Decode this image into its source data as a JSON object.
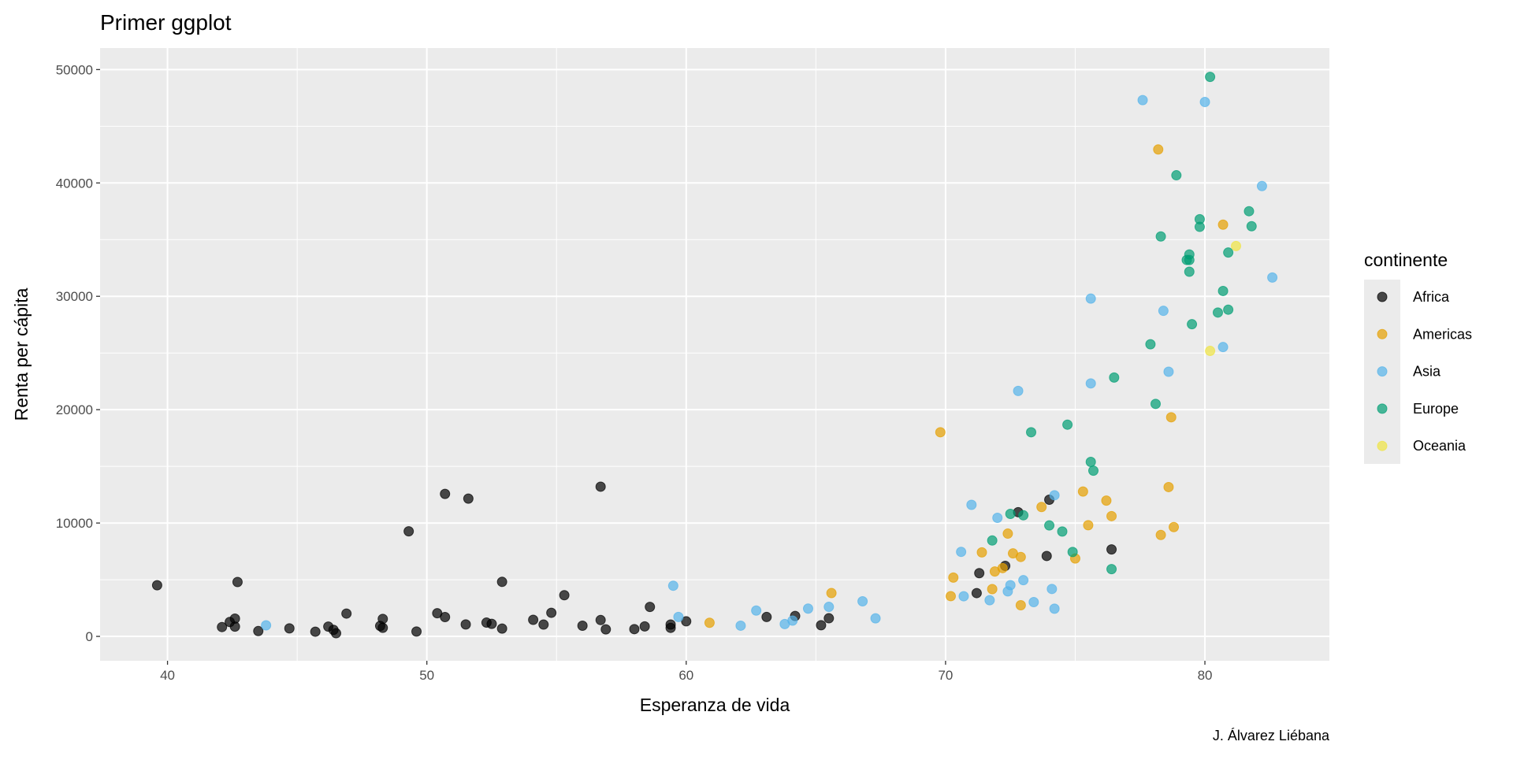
{
  "chart_data": {
    "type": "scatter",
    "title": "Primer ggplot",
    "xlabel": "Esperanza de vida",
    "ylabel": "Renta per cápita",
    "caption": "J. Álvarez Liébana",
    "xlim": [
      37.4,
      84.8
    ],
    "ylim": [
      -2150,
      51900
    ],
    "x_ticks": [
      40,
      50,
      60,
      70,
      80
    ],
    "y_ticks": [
      0,
      10000,
      20000,
      30000,
      40000,
      50000
    ],
    "grid": true,
    "legend": {
      "title": "continente",
      "placement": "right"
    },
    "colors": {
      "Africa": "#000000",
      "Americas": "#E69F00",
      "Asia": "#56B4E9",
      "Europe": "#009E73",
      "Oceania": "#F0E442"
    },
    "series": [
      {
        "name": "Africa",
        "points": [
          [
            72.3,
            6223
          ],
          [
            42.7,
            4797
          ],
          [
            56.7,
            1441
          ],
          [
            50.7,
            12570
          ],
          [
            52.3,
            1217
          ],
          [
            49.6,
            430
          ],
          [
            50.4,
            2042
          ],
          [
            44.7,
            706
          ],
          [
            50.7,
            1704
          ],
          [
            65.2,
            986
          ],
          [
            46.5,
            278
          ],
          [
            55.3,
            3633
          ],
          [
            48.3,
            1545
          ],
          [
            54.8,
            2082
          ],
          [
            71.3,
            5581
          ],
          [
            51.6,
            12154
          ],
          [
            58.0,
            641
          ],
          [
            52.9,
            691
          ],
          [
            56.7,
            13206
          ],
          [
            59.4,
            753
          ],
          [
            60.0,
            1328
          ],
          [
            56.0,
            943
          ],
          [
            46.4,
            579
          ],
          [
            54.1,
            1463
          ],
          [
            42.6,
            1569
          ],
          [
            45.7,
            415
          ],
          [
            74.0,
            12057
          ],
          [
            59.4,
            1045
          ],
          [
            48.3,
            759
          ],
          [
            54.5,
            1042
          ],
          [
            64.2,
            1803
          ],
          [
            72.8,
            10957
          ],
          [
            71.2,
            3820
          ],
          [
            42.1,
            824
          ],
          [
            52.9,
            4811
          ],
          [
            56.9,
            620
          ],
          [
            46.9,
            2014
          ],
          [
            76.4,
            7670
          ],
          [
            46.2,
            863
          ],
          [
            65.5,
            1598
          ],
          [
            63.1,
            1712
          ],
          [
            42.6,
            863
          ],
          [
            48.2,
            926
          ],
          [
            49.3,
            9270
          ],
          [
            58.6,
            2602
          ],
          [
            39.6,
            4513
          ],
          [
            52.5,
            1107
          ],
          [
            58.4,
            883
          ],
          [
            73.9,
            7093
          ],
          [
            51.5,
            1056
          ],
          [
            42.4,
            1271
          ],
          [
            43.5,
            470
          ]
        ]
      },
      {
        "name": "Americas",
        "points": [
          [
            75.3,
            12779
          ],
          [
            65.6,
            3822
          ],
          [
            72.4,
            9066
          ],
          [
            80.7,
            36319
          ],
          [
            78.6,
            13172
          ],
          [
            72.9,
            7007
          ],
          [
            78.8,
            9645
          ],
          [
            78.3,
            8948
          ],
          [
            72.2,
            6025
          ],
          [
            75.0,
            6873
          ],
          [
            71.9,
            5728
          ],
          [
            70.3,
            5186
          ],
          [
            60.9,
            1202
          ],
          [
            70.2,
            3548
          ],
          [
            72.6,
            7321
          ],
          [
            76.2,
            11978
          ],
          [
            72.9,
            2749
          ],
          [
            75.5,
            9809
          ],
          [
            71.8,
            4173
          ],
          [
            71.4,
            7409
          ],
          [
            78.7,
            19329
          ],
          [
            69.8,
            18009
          ],
          [
            78.2,
            42952
          ],
          [
            76.4,
            10611
          ],
          [
            73.7,
            11416
          ]
        ]
      },
      {
        "name": "Asia",
        "points": [
          [
            43.8,
            975
          ],
          [
            75.6,
            29796
          ],
          [
            64.1,
            1391
          ],
          [
            59.7,
            1714
          ],
          [
            73.0,
            4959
          ],
          [
            82.2,
            39725
          ],
          [
            64.7,
            2452
          ],
          [
            70.7,
            3541
          ],
          [
            71.0,
            11606
          ],
          [
            59.5,
            4471
          ],
          [
            80.7,
            25523
          ],
          [
            82.6,
            31656
          ],
          [
            72.5,
            4519
          ],
          [
            67.3,
            1593
          ],
          [
            78.6,
            23348
          ],
          [
            77.6,
            47307
          ],
          [
            72.0,
            10461
          ],
          [
            74.2,
            12452
          ],
          [
            66.8,
            3096
          ],
          [
            62.1,
            944
          ],
          [
            63.8,
            1091
          ],
          [
            75.6,
            22316
          ],
          [
            65.5,
            2606
          ],
          [
            71.7,
            3190
          ],
          [
            72.8,
            21655
          ],
          [
            80.0,
            47143
          ],
          [
            72.4,
            3970
          ],
          [
            74.1,
            4185
          ],
          [
            78.4,
            28718
          ],
          [
            70.6,
            7458
          ],
          [
            74.2,
            2442
          ],
          [
            73.4,
            3025
          ],
          [
            62.7,
            2281
          ]
        ]
      },
      {
        "name": "Europe",
        "points": [
          [
            76.4,
            5937
          ],
          [
            79.8,
            36126
          ],
          [
            79.4,
            33693
          ],
          [
            74.9,
            7446
          ],
          [
            73.0,
            10681
          ],
          [
            75.7,
            14619
          ],
          [
            76.5,
            22833
          ],
          [
            78.3,
            35278
          ],
          [
            79.3,
            33207
          ],
          [
            80.7,
            30470
          ],
          [
            79.4,
            32170
          ],
          [
            79.5,
            27538
          ],
          [
            73.3,
            18009
          ],
          [
            81.8,
            36181
          ],
          [
            78.9,
            40676
          ],
          [
            80.5,
            28570
          ],
          [
            74.5,
            9254
          ],
          [
            79.8,
            36798
          ],
          [
            80.2,
            49357
          ],
          [
            75.6,
            15390
          ],
          [
            78.1,
            20510
          ],
          [
            72.5,
            10808
          ],
          [
            74.0,
            9787
          ],
          [
            74.7,
            18678
          ],
          [
            77.9,
            25768
          ],
          [
            80.9,
            28821
          ],
          [
            80.9,
            33860
          ],
          [
            81.7,
            37506
          ],
          [
            71.8,
            8458
          ],
          [
            79.4,
            33203
          ]
        ]
      },
      {
        "name": "Oceania",
        "points": [
          [
            81.2,
            34435
          ],
          [
            80.2,
            25185
          ]
        ]
      }
    ]
  }
}
